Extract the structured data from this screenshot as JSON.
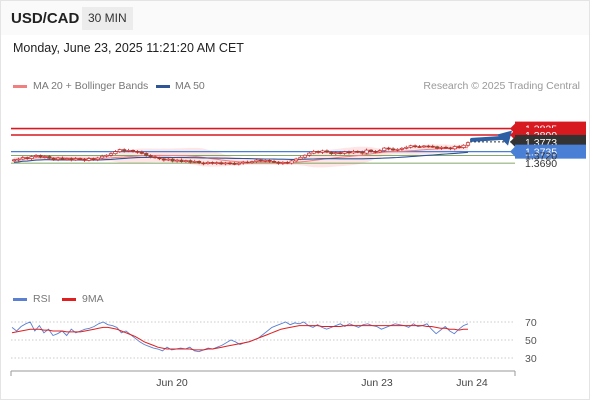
{
  "header": {
    "pair": "USD/CAD",
    "timeframe": "30 MIN",
    "datetime": "Monday, June 23, 2025 11:21:20 AM CET"
  },
  "legend": {
    "main": [
      {
        "label": "MA 20 + Bollinger Bands",
        "color": "#f08080"
      },
      {
        "label": "MA 50",
        "color": "#2f5597"
      }
    ],
    "rsi": [
      {
        "label": "RSI",
        "color": "#5b7fd1"
      },
      {
        "label": "9MA",
        "color": "#e02020"
      }
    ],
    "credit": "Research © 2025 Trading Central"
  },
  "colors": {
    "up_candle": "#ffffff",
    "down_candle": "#2e7d32",
    "candle_outline": "#c62828",
    "resistance": "#d71920",
    "support": "#5a8e3a",
    "pivot": "#4a7fd6",
    "current": "#333333",
    "arrow": "#2e5fa3",
    "band_fill": "#fde0de"
  },
  "chart_data": [
    {
      "type": "candlestick",
      "title": "USD/CAD",
      "x_tick_labels": [
        "Jun 20",
        "Jun 23",
        "Jun 24"
      ],
      "ylim": [
        1.3655,
        1.384
      ],
      "levels": [
        {
          "value": 1.3825,
          "label": "1.3825",
          "kind": "resistance"
        },
        {
          "value": 1.38,
          "label": "1.3800",
          "kind": "resistance"
        },
        {
          "value": 1.3773,
          "label": "1.3773",
          "kind": "current"
        },
        {
          "value": 1.3735,
          "label": "1.3735",
          "kind": "pivot"
        },
        {
          "value": 1.372,
          "label": "1.3720",
          "kind": "support"
        },
        {
          "value": 1.369,
          "label": "1.3690",
          "kind": "support"
        }
      ],
      "candle_closes": [
        1.3703,
        1.3706,
        1.3712,
        1.3708,
        1.3716,
        1.372,
        1.3714,
        1.3716,
        1.3709,
        1.3704,
        1.371,
        1.3705,
        1.3708,
        1.3703,
        1.3708,
        1.3705,
        1.3701,
        1.3708,
        1.3704,
        1.371,
        1.3717,
        1.3721,
        1.3727,
        1.3735,
        1.3743,
        1.3737,
        1.374,
        1.3736,
        1.3733,
        1.3728,
        1.372,
        1.3715,
        1.3711,
        1.3707,
        1.3702,
        1.3706,
        1.3698,
        1.3702,
        1.3696,
        1.37,
        1.3694,
        1.3697,
        1.3691,
        1.3688,
        1.3693,
        1.3689,
        1.3692,
        1.3687,
        1.3691,
        1.3689,
        1.3686,
        1.369,
        1.3694,
        1.3692,
        1.3696,
        1.3702,
        1.3698,
        1.3701,
        1.3697,
        1.3694,
        1.3689,
        1.3693,
        1.369,
        1.3699,
        1.3706,
        1.3713,
        1.3721,
        1.3729,
        1.3736,
        1.3732,
        1.3738,
        1.3733,
        1.3727,
        1.3731,
        1.3728,
        1.3734,
        1.373,
        1.3736,
        1.3734,
        1.3729,
        1.3741,
        1.3736,
        1.3734,
        1.3739,
        1.3749,
        1.3746,
        1.3741,
        1.3744,
        1.3748,
        1.3752,
        1.3758,
        1.3755,
        1.3754,
        1.3757,
        1.3756,
        1.3754,
        1.3748,
        1.3752,
        1.375,
        1.3746,
        1.3755,
        1.3751,
        1.376,
        1.377
      ],
      "target_arrow": {
        "from": 1.3773,
        "to": 1.3825
      }
    },
    {
      "type": "line",
      "title": "RSI",
      "ylim": [
        20,
        80
      ],
      "y_ticks": [
        70,
        50,
        30
      ],
      "series": [
        {
          "name": "RSI",
          "values": [
            64,
            60,
            65,
            68,
            70,
            60,
            66,
            58,
            62,
            55,
            57,
            60,
            55,
            62,
            58,
            60,
            62,
            63,
            65,
            68,
            70,
            67,
            66,
            64,
            58,
            60,
            56,
            52,
            48,
            45,
            43,
            41,
            40,
            38,
            42,
            39,
            40,
            41,
            40,
            42,
            38,
            37,
            39,
            41,
            40,
            42,
            44,
            47,
            50,
            48,
            45,
            47,
            48,
            50,
            52,
            56,
            60,
            64,
            66,
            68,
            70,
            67,
            69,
            68,
            70,
            66,
            64,
            67,
            64,
            62,
            64,
            66,
            68,
            65,
            68,
            66,
            64,
            67,
            68,
            66,
            65,
            62,
            64,
            66,
            68,
            67,
            66,
            64,
            68,
            65,
            66,
            68,
            62,
            57,
            61,
            65,
            60,
            57,
            62,
            66,
            68
          ]
        },
        {
          "name": "9MA",
          "values": [
            58,
            59,
            60,
            61,
            62,
            62,
            62,
            61,
            61,
            60,
            60,
            60,
            59,
            59,
            59,
            59,
            60,
            61,
            62,
            63,
            64,
            64,
            63,
            62,
            60,
            58,
            56,
            54,
            51,
            48,
            46,
            44,
            42,
            41,
            40,
            40,
            40,
            40,
            40,
            40,
            39,
            39,
            39,
            40,
            40,
            41,
            42,
            43,
            44,
            45,
            46,
            47,
            48,
            50,
            52,
            54,
            56,
            58,
            60,
            62,
            63,
            64,
            65,
            66,
            66,
            66,
            66,
            66,
            65,
            65,
            65,
            65,
            65,
            66,
            66,
            66,
            66,
            66,
            66,
            66,
            66,
            66,
            66,
            66,
            66,
            66,
            66,
            66,
            66,
            66,
            66,
            65,
            65,
            64,
            63,
            63,
            62,
            62,
            61,
            62,
            62
          ]
        }
      ]
    }
  ]
}
